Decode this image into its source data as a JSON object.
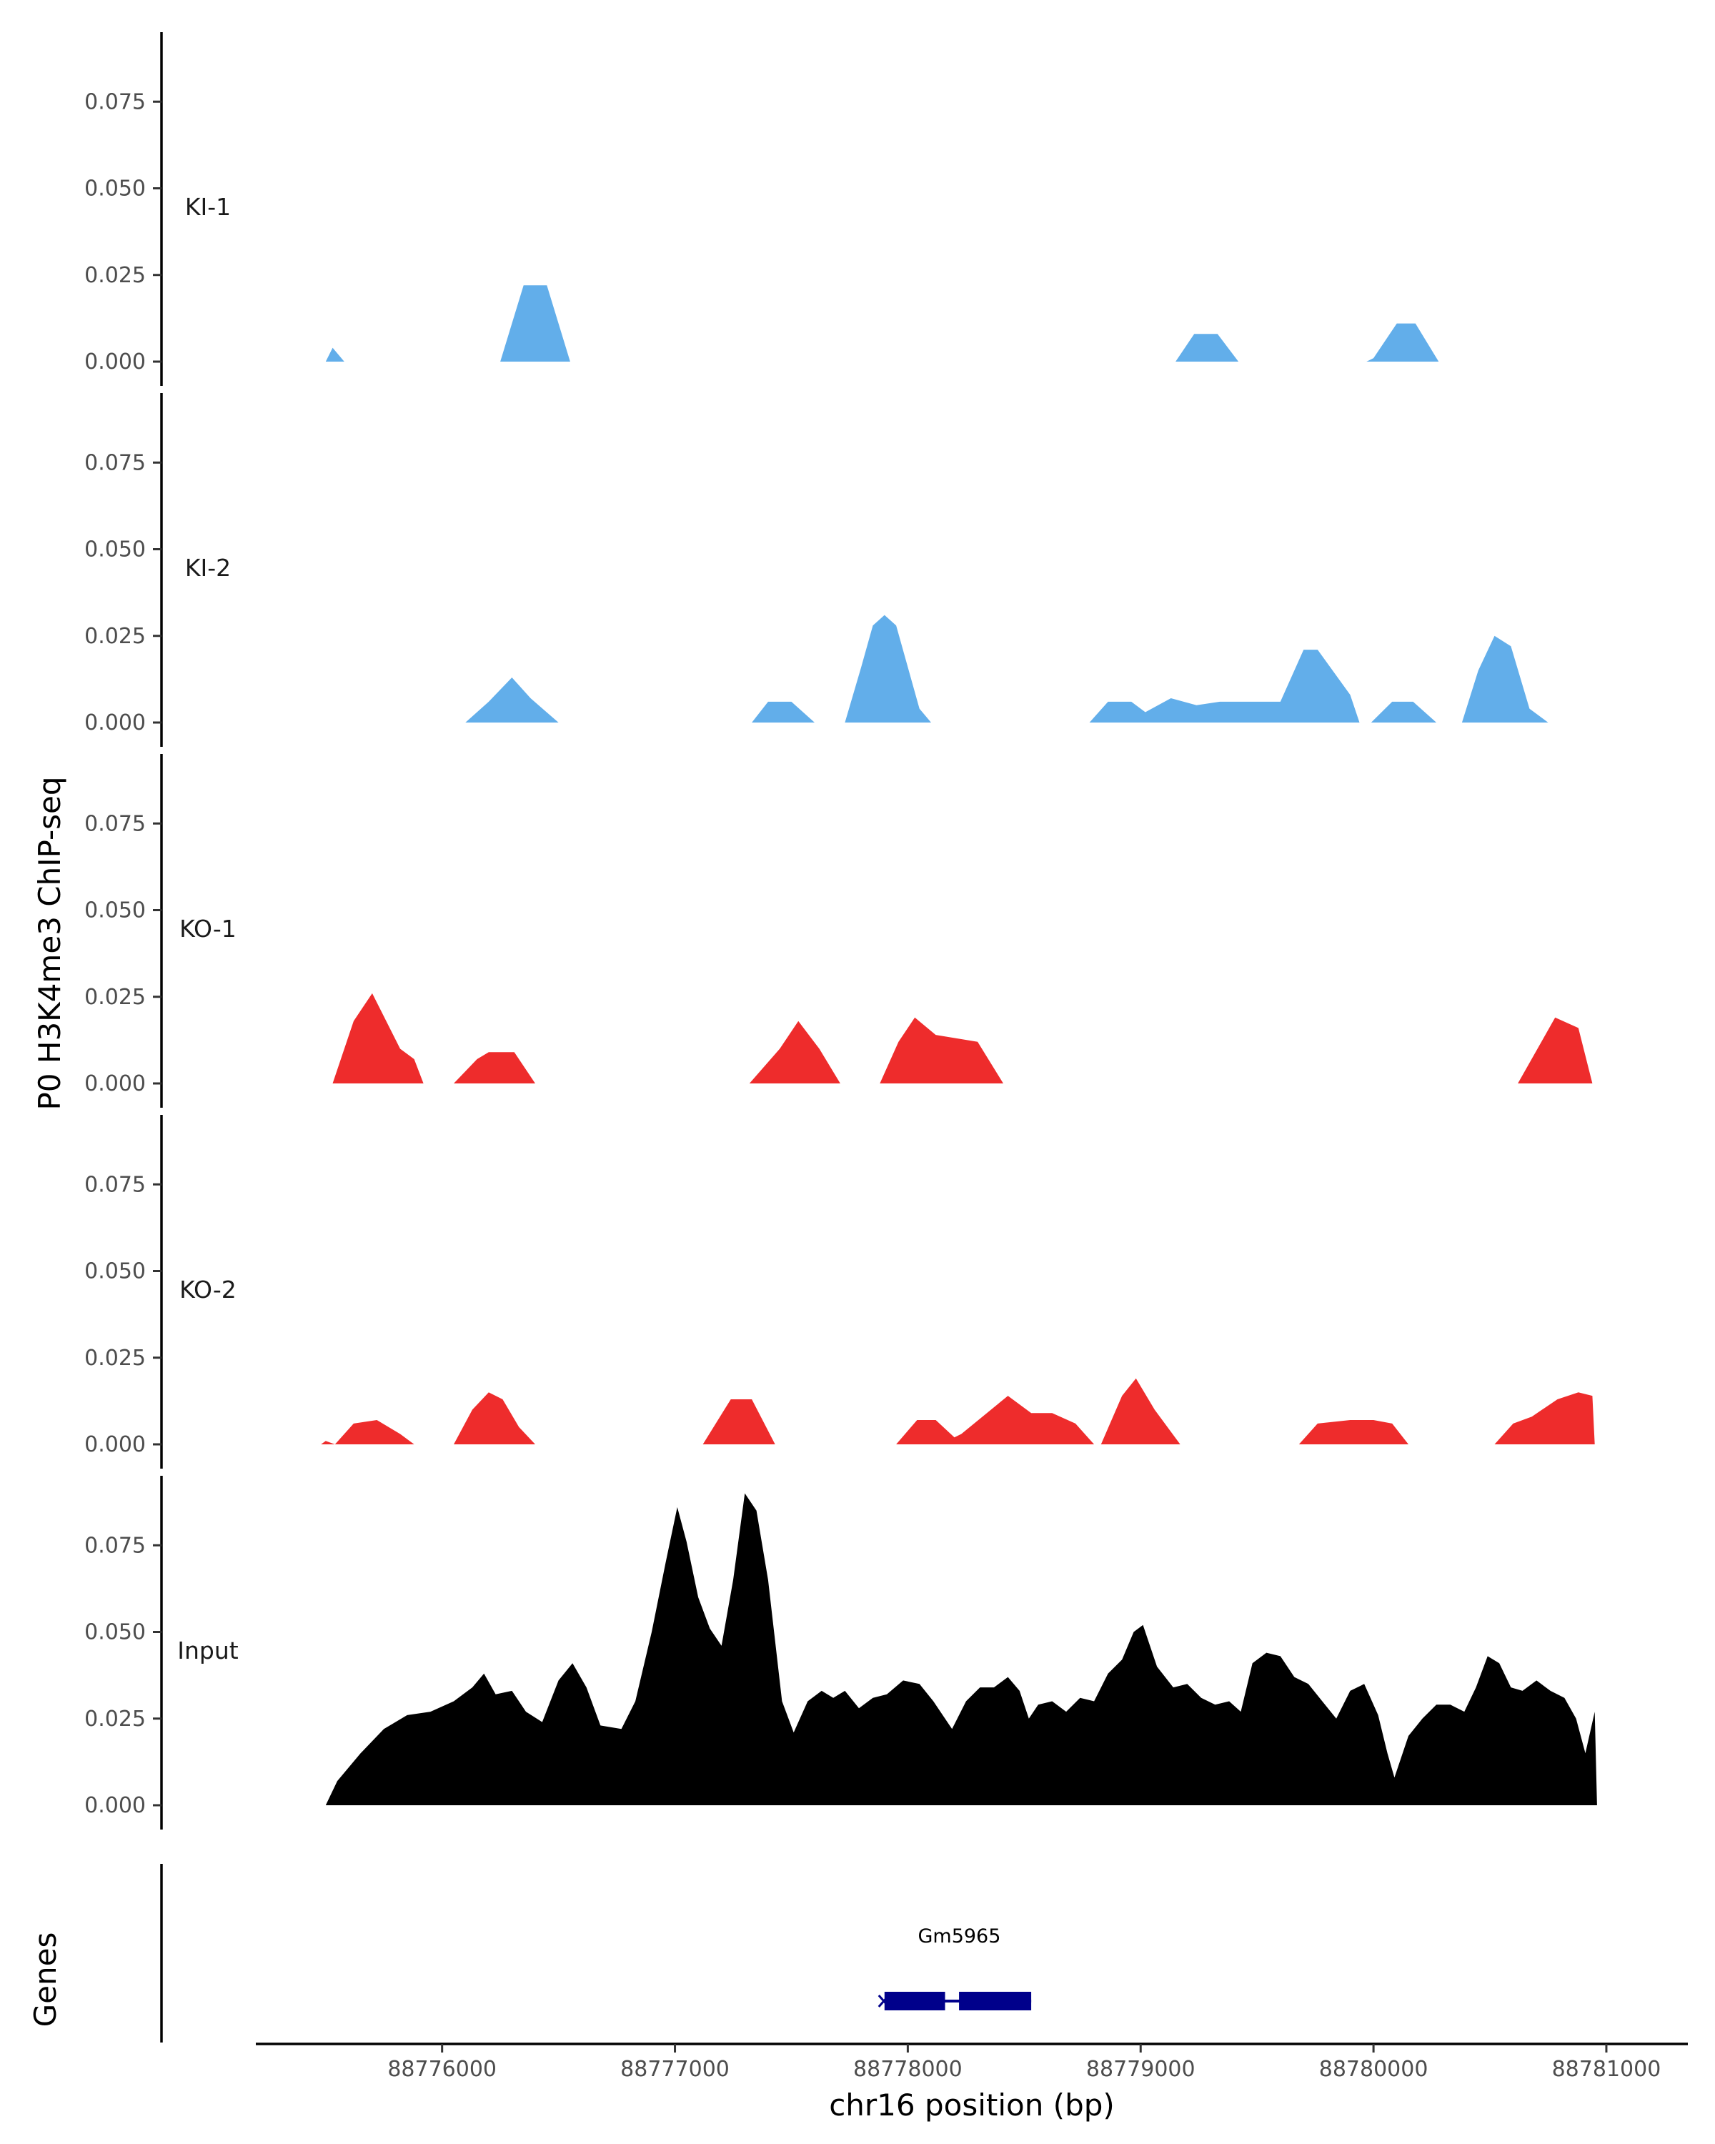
{
  "chart_data": {
    "type": "area",
    "ylabel": "P0 H3K4me3 ChIP-seq",
    "xlabel": "chr16 position (bp)",
    "genes_label": "Genes",
    "xlim": [
      88775200,
      88781350
    ],
    "ylim": [
      0,
      0.095
    ],
    "x_ticks": [
      88776000,
      88777000,
      88778000,
      88779000,
      88780000,
      88781000
    ],
    "x_tick_labels": [
      "88776000",
      "88777000",
      "88778000",
      "88779000",
      "88780000",
      "88781000"
    ],
    "y_ticks": [
      0,
      0.025,
      0.05,
      0.075
    ],
    "y_tick_labels": [
      "0.000",
      "0.025",
      "0.050",
      "0.075"
    ],
    "colors": {
      "KI": "#62aeea",
      "KO": "#ee2c2c",
      "Input": "#000000",
      "gene": "#00008b"
    },
    "tracks": [
      {
        "name": "KI-1",
        "color": "#62aeea",
        "points": [
          [
            88775500,
            0
          ],
          [
            88775530,
            0.004
          ],
          [
            88775580,
            0
          ],
          [
            88776250,
            0
          ],
          [
            88776350,
            0.022
          ],
          [
            88776450,
            0.022
          ],
          [
            88776550,
            0
          ],
          [
            88779150,
            0
          ],
          [
            88779230,
            0.008
          ],
          [
            88779330,
            0.008
          ],
          [
            88779420,
            0
          ],
          [
            88779970,
            0
          ],
          [
            88780000,
            0.001
          ],
          [
            88780100,
            0.011
          ],
          [
            88780180,
            0.011
          ],
          [
            88780280,
            0
          ]
        ]
      },
      {
        "name": "KI-2",
        "color": "#62aeea",
        "points": [
          [
            88776100,
            0
          ],
          [
            88776200,
            0.006
          ],
          [
            88776300,
            0.013
          ],
          [
            88776380,
            0.007
          ],
          [
            88776500,
            0
          ],
          [
            88777330,
            0
          ],
          [
            88777400,
            0.006
          ],
          [
            88777500,
            0.006
          ],
          [
            88777600,
            0
          ],
          [
            88777730,
            0
          ],
          [
            88777800,
            0.016
          ],
          [
            88777850,
            0.028
          ],
          [
            88777900,
            0.031
          ],
          [
            88777950,
            0.028
          ],
          [
            88778000,
            0.016
          ],
          [
            88778050,
            0.004
          ],
          [
            88778100,
            0
          ],
          [
            88778780,
            0
          ],
          [
            88778860,
            0.006
          ],
          [
            88778960,
            0.006
          ],
          [
            88779020,
            0.003
          ],
          [
            88779130,
            0.007
          ],
          [
            88779240,
            0.005
          ],
          [
            88779340,
            0.006
          ],
          [
            88779500,
            0.006
          ],
          [
            88779600,
            0.006
          ],
          [
            88779700,
            0.021
          ],
          [
            88779760,
            0.021
          ],
          [
            88779900,
            0.008
          ],
          [
            88779940,
            0
          ],
          [
            88779990,
            0
          ],
          [
            88780080,
            0.006
          ],
          [
            88780170,
            0.006
          ],
          [
            88780270,
            0
          ],
          [
            88780380,
            0
          ],
          [
            88780450,
            0.015
          ],
          [
            88780520,
            0.025
          ],
          [
            88780590,
            0.022
          ],
          [
            88780670,
            0.004
          ],
          [
            88780750,
            0
          ]
        ]
      },
      {
        "name": "KO-1",
        "color": "#ee2c2c",
        "points": [
          [
            88775530,
            0
          ],
          [
            88775620,
            0.018
          ],
          [
            88775700,
            0.026
          ],
          [
            88775820,
            0.01
          ],
          [
            88775880,
            0.007
          ],
          [
            88775920,
            0
          ],
          [
            88776050,
            0
          ],
          [
            88776150,
            0.007
          ],
          [
            88776200,
            0.009
          ],
          [
            88776310,
            0.009
          ],
          [
            88776400,
            0
          ],
          [
            88777320,
            0
          ],
          [
            88777450,
            0.01
          ],
          [
            88777530,
            0.018
          ],
          [
            88777620,
            0.01
          ],
          [
            88777710,
            0
          ],
          [
            88777880,
            0
          ],
          [
            88777960,
            0.012
          ],
          [
            88778030,
            0.019
          ],
          [
            88778120,
            0.014
          ],
          [
            88778300,
            0.012
          ],
          [
            88778410,
            0
          ],
          [
            88780620,
            0
          ],
          [
            88780780,
            0.019
          ],
          [
            88780880,
            0.016
          ],
          [
            88780940,
            0
          ]
        ]
      },
      {
        "name": "KO-2",
        "color": "#ee2c2c",
        "points": [
          [
            88775480,
            0
          ],
          [
            88775500,
            0.001
          ],
          [
            88775540,
            0
          ],
          [
            88775620,
            0.006
          ],
          [
            88775720,
            0.007
          ],
          [
            88775820,
            0.003
          ],
          [
            88775880,
            0
          ],
          [
            88776050,
            0
          ],
          [
            88776130,
            0.01
          ],
          [
            88776200,
            0.015
          ],
          [
            88776260,
            0.013
          ],
          [
            88776330,
            0.005
          ],
          [
            88776400,
            0
          ],
          [
            88777120,
            0
          ],
          [
            88777240,
            0.013
          ],
          [
            88777330,
            0.013
          ],
          [
            88777430,
            0
          ],
          [
            88777950,
            0
          ],
          [
            88778040,
            0.007
          ],
          [
            88778120,
            0.007
          ],
          [
            88778200,
            0.002
          ],
          [
            88778230,
            0.003
          ],
          [
            88778430,
            0.014
          ],
          [
            88778530,
            0.009
          ],
          [
            88778620,
            0.009
          ],
          [
            88778720,
            0.006
          ],
          [
            88778800,
            0
          ],
          [
            88778830,
            0
          ],
          [
            88778920,
            0.014
          ],
          [
            88778980,
            0.019
          ],
          [
            88779060,
            0.01
          ],
          [
            88779170,
            0
          ],
          [
            88779680,
            0
          ],
          [
            88779760,
            0.006
          ],
          [
            88779900,
            0.007
          ],
          [
            88780000,
            0.007
          ],
          [
            88780080,
            0.006
          ],
          [
            88780150,
            0
          ],
          [
            88780520,
            0
          ],
          [
            88780600,
            0.006
          ],
          [
            88780680,
            0.008
          ],
          [
            88780790,
            0.013
          ],
          [
            88780880,
            0.015
          ],
          [
            88780940,
            0.014
          ],
          [
            88780950,
            0
          ]
        ]
      },
      {
        "name": "Input",
        "color": "#000000",
        "points": [
          [
            88775500,
            0
          ],
          [
            88775550,
            0.007
          ],
          [
            88775650,
            0.015
          ],
          [
            88775750,
            0.022
          ],
          [
            88775850,
            0.026
          ],
          [
            88775950,
            0.027
          ],
          [
            88776050,
            0.03
          ],
          [
            88776130,
            0.034
          ],
          [
            88776180,
            0.038
          ],
          [
            88776230,
            0.032
          ],
          [
            88776300,
            0.033
          ],
          [
            88776360,
            0.027
          ],
          [
            88776430,
            0.024
          ],
          [
            88776500,
            0.036
          ],
          [
            88776560,
            0.041
          ],
          [
            88776620,
            0.034
          ],
          [
            88776680,
            0.023
          ],
          [
            88776770,
            0.022
          ],
          [
            88776830,
            0.03
          ],
          [
            88776900,
            0.05
          ],
          [
            88776960,
            0.07
          ],
          [
            88777010,
            0.086
          ],
          [
            88777050,
            0.076
          ],
          [
            88777100,
            0.06
          ],
          [
            88777150,
            0.051
          ],
          [
            88777200,
            0.046
          ],
          [
            88777250,
            0.065
          ],
          [
            88777300,
            0.09
          ],
          [
            88777350,
            0.085
          ],
          [
            88777400,
            0.065
          ],
          [
            88777460,
            0.03
          ],
          [
            88777510,
            0.021
          ],
          [
            88777570,
            0.03
          ],
          [
            88777630,
            0.033
          ],
          [
            88777680,
            0.031
          ],
          [
            88777730,
            0.033
          ],
          [
            88777790,
            0.028
          ],
          [
            88777850,
            0.031
          ],
          [
            88777910,
            0.032
          ],
          [
            88777980,
            0.036
          ],
          [
            88778050,
            0.035
          ],
          [
            88778110,
            0.03
          ],
          [
            88778190,
            0.022
          ],
          [
            88778250,
            0.03
          ],
          [
            88778310,
            0.034
          ],
          [
            88778370,
            0.034
          ],
          [
            88778430,
            0.037
          ],
          [
            88778480,
            0.033
          ],
          [
            88778520,
            0.025
          ],
          [
            88778560,
            0.029
          ],
          [
            88778620,
            0.03
          ],
          [
            88778680,
            0.027
          ],
          [
            88778740,
            0.031
          ],
          [
            88778800,
            0.03
          ],
          [
            88778860,
            0.038
          ],
          [
            88778920,
            0.042
          ],
          [
            88778970,
            0.05
          ],
          [
            88779010,
            0.052
          ],
          [
            88779070,
            0.04
          ],
          [
            88779140,
            0.034
          ],
          [
            88779200,
            0.035
          ],
          [
            88779260,
            0.031
          ],
          [
            88779320,
            0.029
          ],
          [
            88779380,
            0.03
          ],
          [
            88779430,
            0.027
          ],
          [
            88779480,
            0.041
          ],
          [
            88779540,
            0.044
          ],
          [
            88779600,
            0.043
          ],
          [
            88779660,
            0.037
          ],
          [
            88779720,
            0.035
          ],
          [
            88779780,
            0.03
          ],
          [
            88779840,
            0.025
          ],
          [
            88779900,
            0.033
          ],
          [
            88779960,
            0.035
          ],
          [
            88780020,
            0.026
          ],
          [
            88780060,
            0.015
          ],
          [
            88780090,
            0.008
          ],
          [
            88780150,
            0.02
          ],
          [
            88780210,
            0.025
          ],
          [
            88780270,
            0.029
          ],
          [
            88780330,
            0.029
          ],
          [
            88780390,
            0.027
          ],
          [
            88780440,
            0.034
          ],
          [
            88780490,
            0.043
          ],
          [
            88780540,
            0.041
          ],
          [
            88780590,
            0.034
          ],
          [
            88780640,
            0.033
          ],
          [
            88780700,
            0.036
          ],
          [
            88780760,
            0.033
          ],
          [
            88780820,
            0.031
          ],
          [
            88780870,
            0.025
          ],
          [
            88780910,
            0.015
          ],
          [
            88780950,
            0.027
          ],
          [
            88780960,
            0
          ]
        ]
      }
    ],
    "gene": {
      "name": "Gm5965",
      "start": 88777900,
      "end": 88778530,
      "exons": [
        [
          88777900,
          88778160
        ],
        [
          88778220,
          88778530
        ]
      ]
    }
  }
}
